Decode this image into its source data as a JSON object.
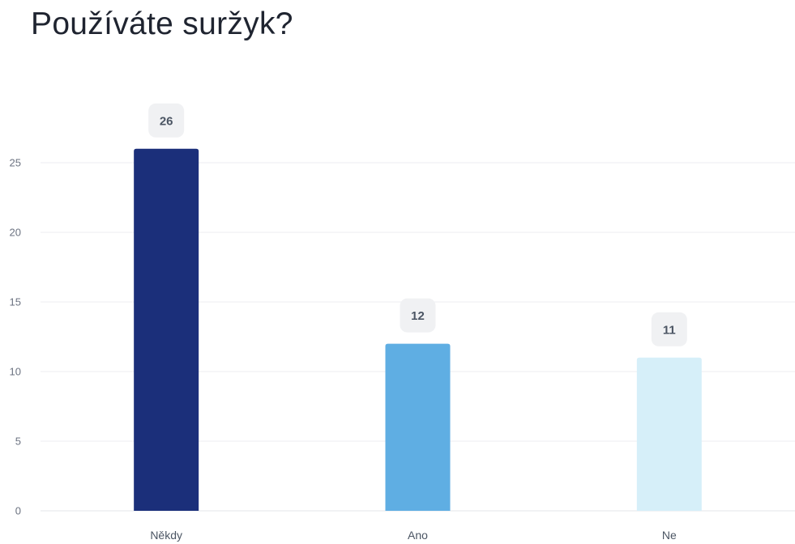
{
  "chart_data": {
    "type": "bar",
    "title": "Používáte suržyk?",
    "xlabel": "",
    "ylabel": "",
    "categories": [
      "Někdy",
      "Ano",
      "Ne"
    ],
    "values": [
      26,
      12,
      11
    ],
    "colors": [
      "#1b2f7a",
      "#5faee3",
      "#d6eff9"
    ],
    "ylim": [
      0,
      25
    ],
    "yticks": [
      0,
      5,
      10,
      15,
      20,
      25
    ],
    "grid": true,
    "legend": "none",
    "data_labels": [
      "26",
      "12",
      "11"
    ]
  }
}
